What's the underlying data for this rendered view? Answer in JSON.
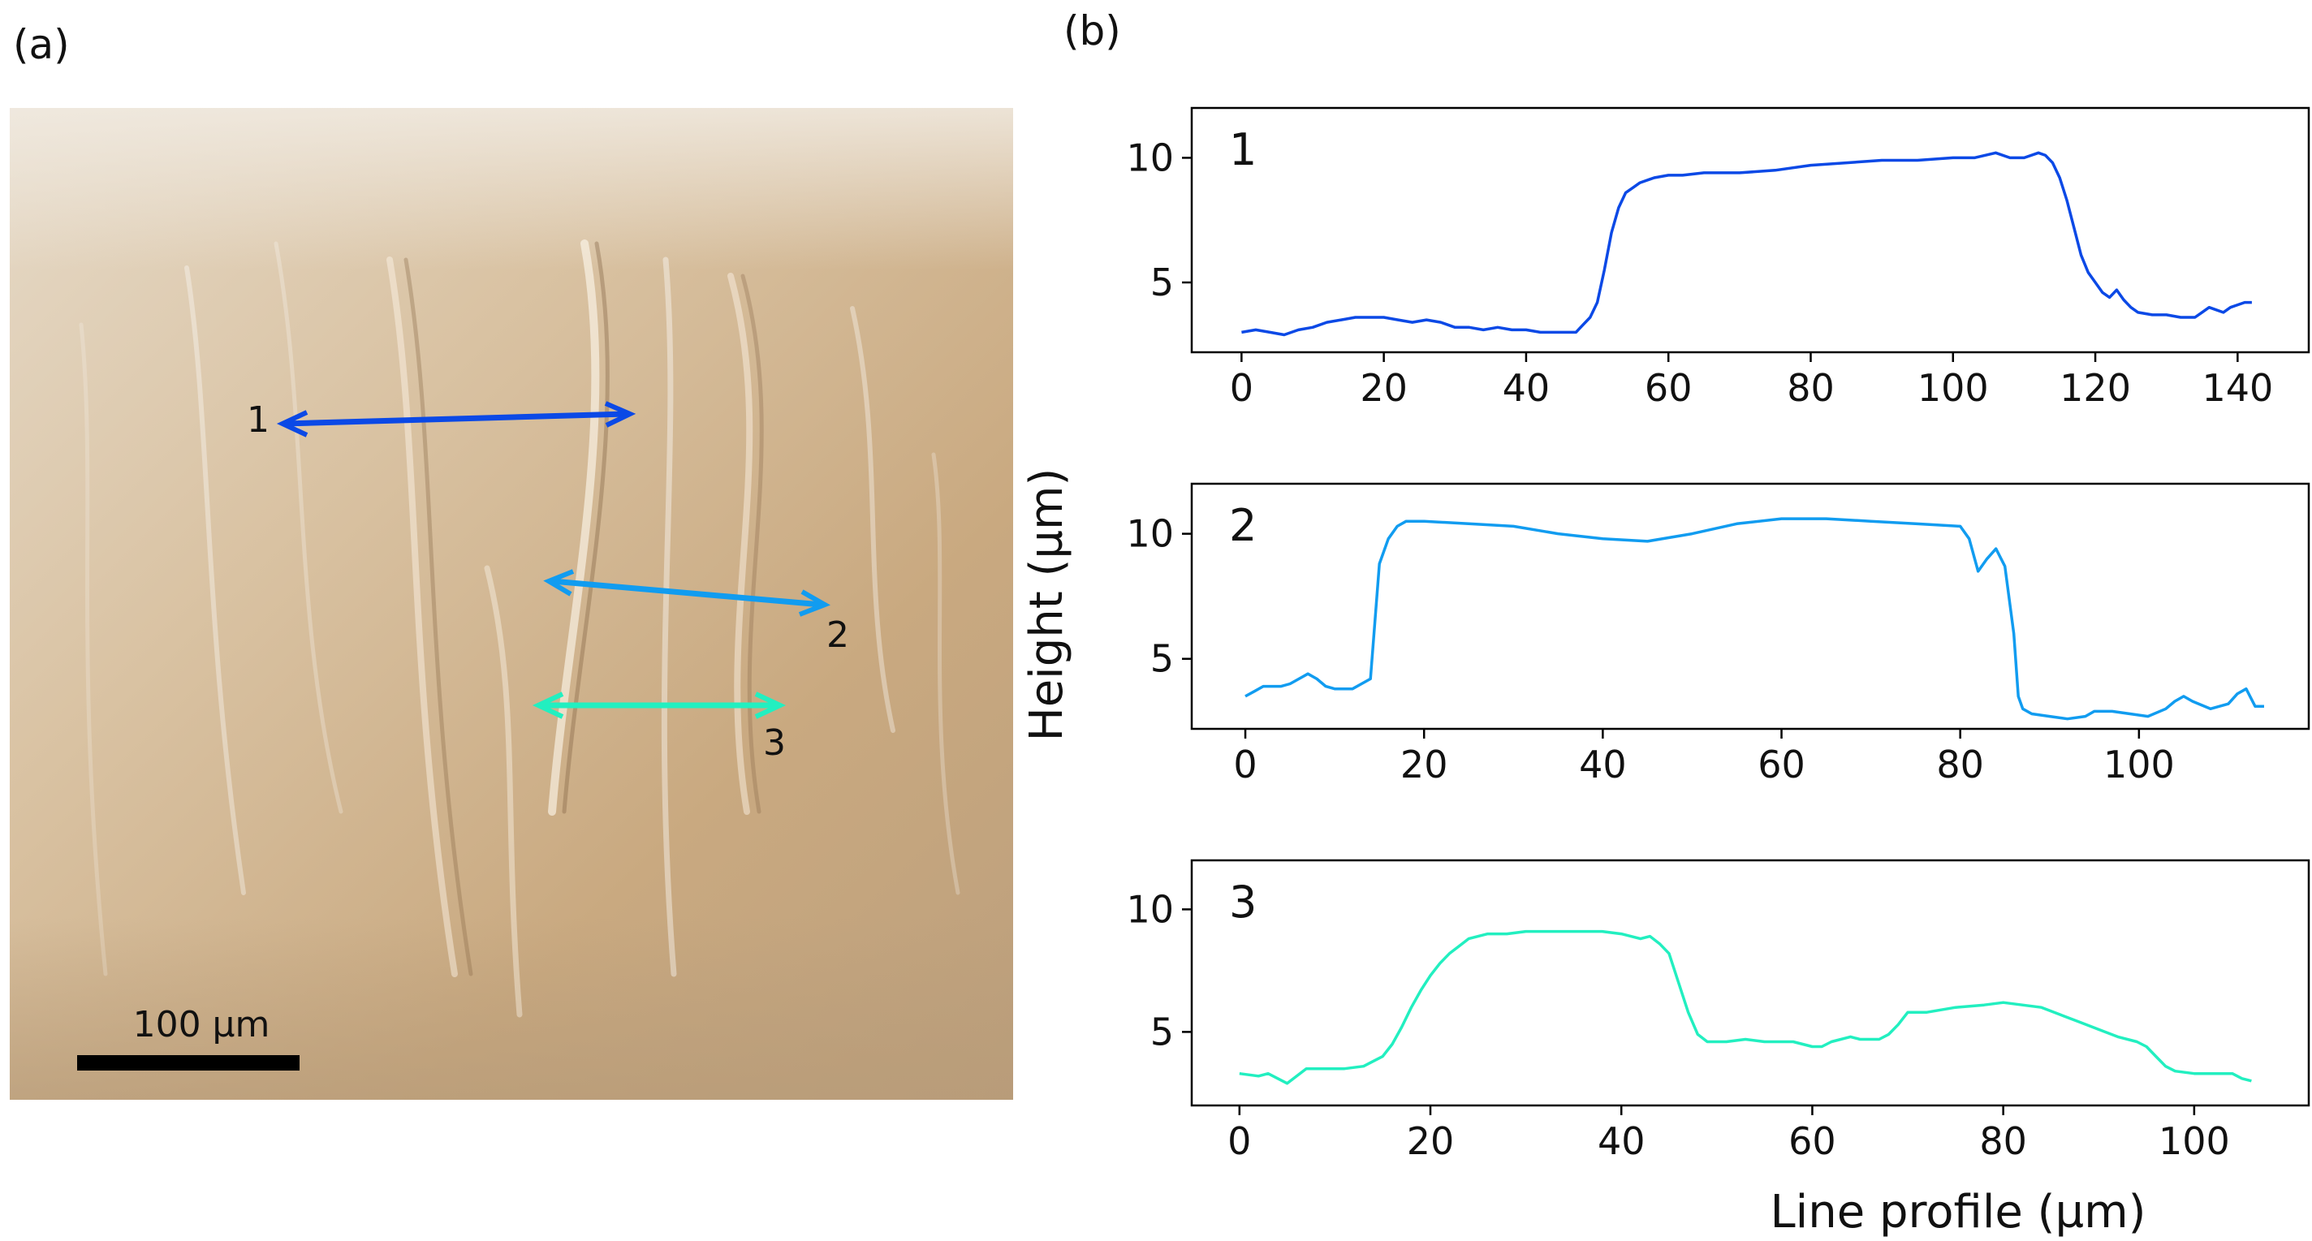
{
  "panel_a": {
    "label": "(a)",
    "scale_bar_label": "100 µm",
    "markers": [
      {
        "label": "1",
        "color": "#0b49e6"
      },
      {
        "label": "2",
        "color": "#119cf0"
      },
      {
        "label": "3",
        "color": "#22efc0"
      }
    ]
  },
  "panel_b": {
    "label": "(b)"
  },
  "chart_data": [
    {
      "type": "line",
      "panel_label": "1",
      "color": "#0b49e6",
      "xlabel": "",
      "ylabel": "Height (µm)",
      "xlim": [
        -7,
        150
      ],
      "ylim": [
        2.2,
        12.0
      ],
      "xticks": [
        0,
        20,
        40,
        60,
        80,
        100,
        120,
        140
      ],
      "yticks": [
        5,
        10
      ],
      "x": [
        0,
        2,
        4,
        6,
        8,
        10,
        12,
        14,
        16,
        18,
        20,
        22,
        24,
        26,
        28,
        30,
        32,
        34,
        36,
        38,
        40,
        42,
        44,
        46,
        47,
        48,
        49,
        50,
        51,
        52,
        53,
        54,
        55,
        56,
        58,
        60,
        62,
        65,
        70,
        75,
        80,
        85,
        90,
        95,
        100,
        103,
        106,
        108,
        110,
        112,
        113,
        114,
        115,
        116,
        117,
        118,
        119,
        120,
        121,
        122,
        123,
        124,
        125,
        126,
        128,
        130,
        132,
        134,
        135,
        136,
        137,
        138,
        139,
        140,
        141,
        142
      ],
      "y": [
        3.0,
        3.1,
        3.0,
        2.9,
        3.1,
        3.2,
        3.4,
        3.5,
        3.6,
        3.6,
        3.6,
        3.5,
        3.4,
        3.5,
        3.4,
        3.2,
        3.2,
        3.1,
        3.2,
        3.1,
        3.1,
        3.0,
        3.0,
        3.0,
        3.0,
        3.3,
        3.6,
        4.2,
        5.5,
        7.0,
        8.0,
        8.6,
        8.8,
        9.0,
        9.2,
        9.3,
        9.3,
        9.4,
        9.4,
        9.5,
        9.7,
        9.8,
        9.9,
        9.9,
        10.0,
        10.0,
        10.2,
        10.0,
        10.0,
        10.2,
        10.1,
        9.8,
        9.2,
        8.3,
        7.2,
        6.1,
        5.4,
        5.0,
        4.6,
        4.4,
        4.7,
        4.3,
        4.0,
        3.8,
        3.7,
        3.7,
        3.6,
        3.6,
        3.8,
        4.0,
        3.9,
        3.8,
        4.0,
        4.1,
        4.2,
        4.2
      ]
    },
    {
      "type": "line",
      "panel_label": "2",
      "color": "#119cf0",
      "xlabel": "",
      "ylabel": "Height (µm)",
      "xlim": [
        -6,
        119
      ],
      "ylim": [
        2.2,
        12.0
      ],
      "xticks": [
        0,
        20,
        40,
        60,
        80,
        100
      ],
      "yticks": [
        5,
        10
      ],
      "x": [
        0,
        1,
        2,
        4,
        5,
        6,
        7,
        8,
        9,
        10,
        12,
        13,
        14,
        14.5,
        15,
        16,
        17,
        18,
        20,
        25,
        30,
        35,
        40,
        45,
        50,
        55,
        60,
        65,
        70,
        75,
        80,
        81,
        82,
        83,
        84,
        85,
        86,
        86.5,
        87,
        88,
        90,
        92,
        94,
        95,
        97,
        99,
        101,
        103,
        104,
        105,
        106,
        108,
        110,
        111,
        112,
        113,
        114
      ],
      "y": [
        3.5,
        3.7,
        3.9,
        3.9,
        4.0,
        4.2,
        4.4,
        4.2,
        3.9,
        3.8,
        3.8,
        4.0,
        4.2,
        6.5,
        8.8,
        9.8,
        10.3,
        10.5,
        10.5,
        10.4,
        10.3,
        10.0,
        9.8,
        9.7,
        10.0,
        10.4,
        10.6,
        10.6,
        10.5,
        10.4,
        10.3,
        9.8,
        8.5,
        9.0,
        9.4,
        8.7,
        6.0,
        3.5,
        3.0,
        2.8,
        2.7,
        2.6,
        2.7,
        2.9,
        2.9,
        2.8,
        2.7,
        3.0,
        3.3,
        3.5,
        3.3,
        3.0,
        3.2,
        3.6,
        3.8,
        3.1,
        3.1
      ]
    },
    {
      "type": "line",
      "panel_label": "3",
      "color": "#22efc0",
      "xlabel": "Line profile (µm)",
      "ylabel": "Height (µm)",
      "xlim": [
        -5,
        112
      ],
      "ylim": [
        2.0,
        12.0
      ],
      "xticks": [
        0,
        20,
        40,
        60,
        80,
        100
      ],
      "yticks": [
        5,
        10
      ],
      "x": [
        0,
        2,
        3,
        5,
        7,
        9,
        11,
        13,
        14,
        15,
        16,
        17,
        18,
        19,
        20,
        21,
        22,
        23,
        24,
        25,
        26,
        27,
        28,
        30,
        32,
        35,
        38,
        40,
        41,
        42,
        43,
        44,
        45,
        46,
        47,
        48,
        49,
        51,
        53,
        55,
        58,
        60,
        61,
        62,
        64,
        65,
        67,
        68,
        69,
        70,
        72,
        75,
        78,
        80,
        82,
        84,
        86,
        88,
        90,
        92,
        94,
        95,
        96,
        97,
        98,
        100,
        102,
        104,
        105,
        106
      ],
      "y": [
        3.3,
        3.2,
        3.3,
        2.9,
        3.5,
        3.5,
        3.5,
        3.6,
        3.8,
        4.0,
        4.5,
        5.2,
        6.0,
        6.7,
        7.3,
        7.8,
        8.2,
        8.5,
        8.8,
        8.9,
        9.0,
        9.0,
        9.0,
        9.1,
        9.1,
        9.1,
        9.1,
        9.0,
        8.9,
        8.8,
        8.9,
        8.6,
        8.2,
        7.0,
        5.8,
        4.9,
        4.6,
        4.6,
        4.7,
        4.6,
        4.6,
        4.4,
        4.4,
        4.6,
        4.8,
        4.7,
        4.7,
        4.9,
        5.3,
        5.8,
        5.8,
        6.0,
        6.1,
        6.2,
        6.1,
        6.0,
        5.7,
        5.4,
        5.1,
        4.8,
        4.6,
        4.4,
        4.0,
        3.6,
        3.4,
        3.3,
        3.3,
        3.3,
        3.1,
        3.0
      ]
    }
  ]
}
